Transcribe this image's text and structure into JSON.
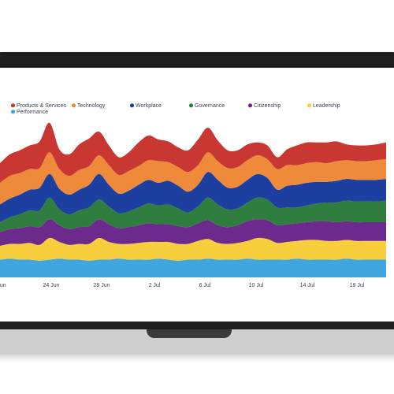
{
  "chart_data": {
    "type": "area",
    "stacked": true,
    "style": "streamgraph",
    "title": "",
    "xlabel": "",
    "ylabel": "",
    "x_ticks": [
      "Jun",
      "24 Jun",
      "28 Jun",
      "2 Jul",
      "6 Jul",
      "10 Jul",
      "14 Jul",
      "18 Jul"
    ],
    "legend_position": "top",
    "grid": false,
    "series": [
      {
        "name": "Performance",
        "color": "#3fa6e0",
        "values": [
          18,
          19,
          18,
          18,
          17,
          18,
          19,
          18,
          18,
          17,
          18,
          18,
          19,
          18,
          18,
          18,
          19,
          18,
          17,
          18,
          18,
          19,
          18,
          18,
          18,
          19,
          18,
          18,
          18,
          18,
          19,
          18,
          18,
          18,
          18,
          19,
          18,
          18,
          18,
          18
        ]
      },
      {
        "name": "Leadership",
        "color": "#f7cf3d",
        "values": [
          14,
          15,
          16,
          17,
          16,
          22,
          17,
          15,
          16,
          17,
          22,
          18,
          15,
          16,
          17,
          18,
          17,
          18,
          17,
          16,
          19,
          20,
          17,
          16,
          17,
          18,
          22,
          21,
          17,
          18,
          18,
          20,
          20,
          19,
          19,
          19,
          19,
          19,
          19,
          19
        ]
      },
      {
        "name": "Citizenship",
        "color": "#6d2a8d",
        "values": [
          14,
          15,
          16,
          17,
          18,
          19,
          17,
          16,
          17,
          18,
          19,
          18,
          16,
          17,
          18,
          19,
          18,
          18,
          18,
          17,
          18,
          19,
          18,
          17,
          18,
          20,
          19,
          19,
          18,
          18,
          18,
          18,
          19,
          20,
          19,
          19,
          19,
          19,
          19,
          19
        ]
      },
      {
        "name": "Governance",
        "color": "#2f7d3f",
        "values": [
          10,
          12,
          14,
          16,
          17,
          22,
          16,
          15,
          17,
          19,
          20,
          18,
          15,
          16,
          18,
          20,
          19,
          20,
          18,
          15,
          17,
          23,
          21,
          18,
          17,
          19,
          22,
          21,
          18,
          17,
          16,
          17,
          18,
          19,
          20,
          21,
          21,
          21,
          21,
          22
        ]
      },
      {
        "name": "Workplace",
        "color": "#1d3fa0",
        "values": [
          18,
          19,
          20,
          21,
          23,
          24,
          21,
          20,
          21,
          23,
          26,
          22,
          20,
          21,
          23,
          24,
          23,
          24,
          23,
          21,
          22,
          26,
          25,
          22,
          22,
          23,
          24,
          22,
          18,
          22,
          23,
          23,
          22,
          21,
          22,
          22,
          22,
          22,
          22,
          22
        ]
      },
      {
        "name": "Technology",
        "color": "#ee8a3a",
        "values": [
          22,
          23,
          22,
          21,
          20,
          22,
          20,
          19,
          20,
          19,
          19,
          20,
          19,
          20,
          19,
          20,
          22,
          19,
          19,
          20,
          20,
          20,
          19,
          20,
          20,
          20,
          19,
          19,
          21,
          21,
          20,
          20,
          20,
          19,
          20,
          19,
          19,
          19,
          20,
          20
        ]
      },
      {
        "name": "Products & Services",
        "color": "#c93732",
        "values": [
          20,
          22,
          23,
          24,
          27,
          30,
          20,
          22,
          26,
          28,
          24,
          20,
          18,
          19,
          24,
          25,
          22,
          21,
          20,
          22,
          26,
          25,
          21,
          18,
          17,
          16,
          13,
          14,
          12,
          16,
          20,
          21,
          20,
          21,
          20,
          16,
          16,
          16,
          16,
          17
        ]
      }
    ]
  },
  "legend": {
    "items": [
      {
        "label": "Products & Services",
        "color": "#c93732"
      },
      {
        "label": "Technology",
        "color": "#ee8a3a"
      },
      {
        "label": "Workplace",
        "color": "#1d3fa0"
      },
      {
        "label": "Governance",
        "color": "#2f7d3f"
      },
      {
        "label": "Citizenship",
        "color": "#6d2a8d"
      },
      {
        "label": "Leadership",
        "color": "#f7cf3d"
      },
      {
        "label": "Performance",
        "color": "#3fa6e0"
      }
    ]
  }
}
